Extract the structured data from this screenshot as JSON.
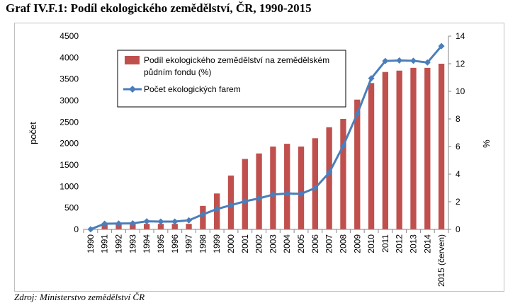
{
  "title": "Graf IV.F.1: Podíl ekologického zemědělství, ČR, 1990-2015",
  "source": "Zdroj: Ministerstvo zemědělství ČR",
  "chart_data": {
    "type": "bar",
    "categories": [
      "1990",
      "1991",
      "1992",
      "1993",
      "1994",
      "1995",
      "1996",
      "1997",
      "1998",
      "1999",
      "2000",
      "2001",
      "2002",
      "2003",
      "2004",
      "2005",
      "2006",
      "2007",
      "2008",
      "2009",
      "2010",
      "2011",
      "2012",
      "2013",
      "2014",
      "2015 (červen)"
    ],
    "ylabel_left": "počet",
    "ylabel_right": "%",
    "ylim_left": [
      0,
      4500
    ],
    "ylim_right": [
      0,
      14
    ],
    "left_ticks": [
      "0",
      "500",
      "1000",
      "1500",
      "2000",
      "2500",
      "3000",
      "3500",
      "4000",
      "4500"
    ],
    "right_ticks": [
      "0",
      "2",
      "4",
      "6",
      "8",
      "10",
      "12",
      "14"
    ],
    "grid": false,
    "legend_position": "top-left",
    "series": [
      {
        "name": "Podíl ekologického zemědělství na  zemědělském půdním fondu (%)",
        "type": "bar",
        "axis": "right",
        "color": "#c0504d",
        "values": [
          0.0,
          0.4,
          0.4,
          0.4,
          0.4,
          0.4,
          0.4,
          0.4,
          1.7,
          2.6,
          3.9,
          5.1,
          5.5,
          6.0,
          6.2,
          6.0,
          6.6,
          7.4,
          8.0,
          9.4,
          10.6,
          11.4,
          11.5,
          11.7,
          11.7,
          12.0
        ]
      },
      {
        "name": "Počet ekologických farem",
        "type": "line",
        "axis": "left",
        "color": "#4a7ebb",
        "values": [
          3,
          132,
          135,
          141,
          187,
          181,
          182,
          211,
          348,
          473,
          563,
          654,
          721,
          810,
          836,
          829,
          963,
          1318,
          1946,
          2689,
          3517,
          3920,
          3934,
          3926,
          3885,
          4267
        ]
      }
    ]
  }
}
